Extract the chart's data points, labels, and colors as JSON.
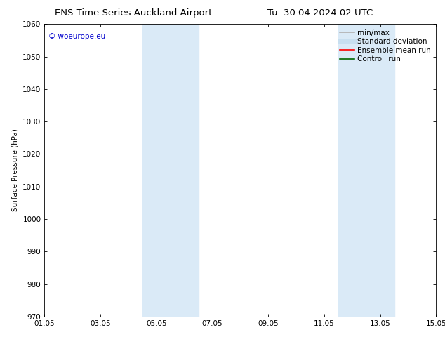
{
  "title_left": "ENS Time Series Auckland Airport",
  "title_right": "Tu. 30.04.2024 02 UTC",
  "ylabel": "Surface Pressure (hPa)",
  "ylim": [
    970,
    1060
  ],
  "yticks": [
    970,
    980,
    990,
    1000,
    1010,
    1020,
    1030,
    1040,
    1050,
    1060
  ],
  "xtick_labels": [
    "01.05",
    "03.05",
    "05.05",
    "07.05",
    "09.05",
    "11.05",
    "13.05",
    "15.05"
  ],
  "xtick_positions": [
    0,
    2,
    4,
    6,
    8,
    10,
    12,
    14
  ],
  "xlim": [
    0,
    14
  ],
  "shaded_bands": [
    {
      "x_start": 3.5,
      "x_end": 5.5
    },
    {
      "x_start": 10.5,
      "x_end": 12.5
    }
  ],
  "shaded_color": "#daeaf7",
  "watermark_text": "© woeurope.eu",
  "watermark_color": "#0000cc",
  "legend_items": [
    {
      "label": "min/max",
      "color": "#b0b0b0",
      "lw": 1.2
    },
    {
      "label": "Standard deviation",
      "color": "#c8dff0",
      "lw": 5
    },
    {
      "label": "Ensemble mean run",
      "color": "#ff0000",
      "lw": 1.2
    },
    {
      "label": "Controll run",
      "color": "#006600",
      "lw": 1.2
    }
  ],
  "background_color": "#ffffff",
  "grid_color": "#dddddd",
  "font_size": 7.5,
  "title_font_size": 9.5
}
